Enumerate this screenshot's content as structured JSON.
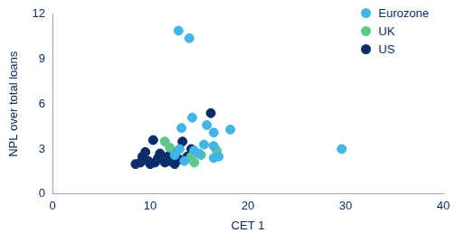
{
  "chart_data": {
    "type": "scatter",
    "x_label": "CET 1",
    "y_label": "NPL over total loans",
    "xlim": [
      0,
      40
    ],
    "xticks": [
      0,
      10,
      20,
      30,
      40
    ],
    "ylim": [
      0,
      12
    ],
    "yticks": [
      0,
      3,
      6,
      9,
      12
    ],
    "grid": false,
    "legend": "top-right",
    "series": [
      {
        "name": "Eurozone",
        "color": "#41b6e6",
        "x": [
          12.9,
          14.0,
          14.3,
          15.8,
          18.2,
          16.5,
          13.2,
          29.6,
          15.5,
          16.5,
          17.0,
          16.5,
          14.5,
          13.0,
          12.5,
          15.0,
          13.5
        ],
        "values": [
          10.9,
          10.4,
          5.1,
          4.6,
          4.3,
          4.1,
          4.4,
          3.0,
          3.3,
          3.2,
          2.5,
          2.4,
          2.9,
          3.0,
          2.6,
          2.7,
          2.2
        ]
      },
      {
        "name": "UK",
        "color": "#5cc98a",
        "x": [
          11.5,
          16.8,
          14.5,
          14.2,
          12.0,
          15.2
        ],
        "values": [
          3.5,
          2.9,
          2.1,
          2.5,
          3.1,
          2.6
        ]
      },
      {
        "name": "US",
        "color": "#0b2d6b",
        "x": [
          16.2,
          13.3,
          10.3,
          8.5,
          9.0,
          9.2,
          9.5,
          9.8,
          10.0,
          10.5,
          11.0,
          11.5,
          12.0,
          12.5,
          13.0,
          13.8,
          12.2,
          9.3,
          10.8,
          14.2,
          11.8
        ],
        "values": [
          5.4,
          3.5,
          3.6,
          2.0,
          2.1,
          2.5,
          2.8,
          2.2,
          2.0,
          2.1,
          2.7,
          2.1,
          2.2,
          2.0,
          2.3,
          2.5,
          2.9,
          2.3,
          2.4,
          3.0,
          2.5
        ]
      }
    ]
  }
}
